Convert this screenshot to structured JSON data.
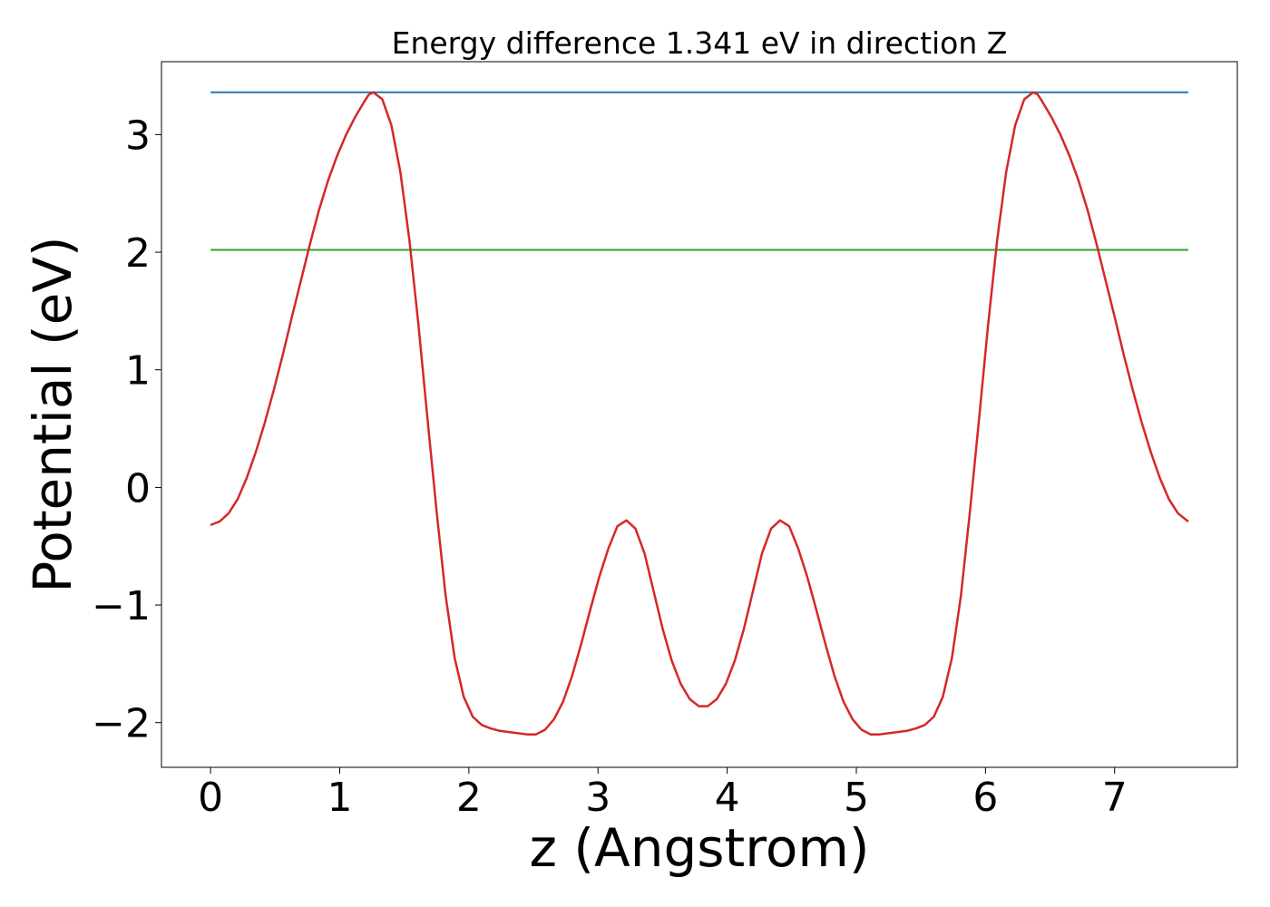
{
  "chart_data": {
    "type": "line",
    "title": "Energy difference 1.341 eV in direction Z",
    "xlabel": "z (Angstrom)",
    "ylabel": "Potential (eV)",
    "xlim": [
      -0.38,
      7.95
    ],
    "ylim": [
      -2.38,
      3.62
    ],
    "x_ticks": [
      0,
      1,
      2,
      3,
      4,
      5,
      6,
      7
    ],
    "x_tick_labels": [
      "0",
      "1",
      "2",
      "3",
      "4",
      "5",
      "6",
      "7"
    ],
    "y_ticks": [
      -2,
      -1,
      0,
      1,
      2,
      3
    ],
    "y_tick_labels": [
      "−2",
      "−1",
      "0",
      "1",
      "2",
      "3"
    ],
    "grid": false,
    "colors": {
      "potential": "#d62728",
      "upper_level": "#1f77b4",
      "lower_level": "#2ca02c"
    },
    "series": [
      {
        "values": [
          [
            0.0,
            -0.32
          ],
          [
            0.07,
            -0.29
          ],
          [
            0.14,
            -0.22
          ],
          [
            0.21,
            -0.1
          ],
          [
            0.28,
            0.08
          ],
          [
            0.35,
            0.3
          ],
          [
            0.42,
            0.55
          ],
          [
            0.49,
            0.83
          ],
          [
            0.56,
            1.13
          ],
          [
            0.63,
            1.45
          ],
          [
            0.7,
            1.76
          ],
          [
            0.77,
            2.07
          ],
          [
            0.84,
            2.36
          ],
          [
            0.91,
            2.61
          ],
          [
            0.98,
            2.82
          ],
          [
            1.05,
            3.0
          ],
          [
            1.12,
            3.15
          ],
          [
            1.19,
            3.28
          ],
          [
            1.225,
            3.34
          ],
          [
            1.26,
            3.36
          ],
          [
            1.33,
            3.3
          ],
          [
            1.4,
            3.08
          ],
          [
            1.47,
            2.68
          ],
          [
            1.54,
            2.1
          ],
          [
            1.61,
            1.38
          ],
          [
            1.68,
            0.58
          ],
          [
            1.75,
            -0.2
          ],
          [
            1.82,
            -0.92
          ],
          [
            1.89,
            -1.45
          ],
          [
            1.96,
            -1.78
          ],
          [
            2.03,
            -1.95
          ],
          [
            2.1,
            -2.02
          ],
          [
            2.17,
            -2.05
          ],
          [
            2.24,
            -2.07
          ],
          [
            2.31,
            -2.08
          ],
          [
            2.38,
            -2.09
          ],
          [
            2.45,
            -2.1
          ],
          [
            2.52,
            -2.1
          ],
          [
            2.59,
            -2.06
          ],
          [
            2.66,
            -1.97
          ],
          [
            2.73,
            -1.82
          ],
          [
            2.8,
            -1.6
          ],
          [
            2.87,
            -1.33
          ],
          [
            2.94,
            -1.04
          ],
          [
            3.01,
            -0.76
          ],
          [
            3.08,
            -0.52
          ],
          [
            3.15,
            -0.33
          ],
          [
            3.22,
            -0.28
          ],
          [
            3.29,
            -0.35
          ],
          [
            3.36,
            -0.56
          ],
          [
            3.43,
            -0.88
          ],
          [
            3.5,
            -1.2
          ],
          [
            3.57,
            -1.47
          ],
          [
            3.64,
            -1.67
          ],
          [
            3.71,
            -1.8
          ],
          [
            3.78,
            -1.86
          ],
          [
            3.85,
            -1.86
          ],
          [
            3.92,
            -1.8
          ],
          [
            3.99,
            -1.67
          ],
          [
            4.06,
            -1.47
          ],
          [
            4.13,
            -1.2
          ],
          [
            4.2,
            -0.88
          ],
          [
            4.27,
            -0.56
          ],
          [
            4.34,
            -0.35
          ],
          [
            4.41,
            -0.28
          ],
          [
            4.48,
            -0.33
          ],
          [
            4.55,
            -0.52
          ],
          [
            4.62,
            -0.76
          ],
          [
            4.69,
            -1.04
          ],
          [
            4.76,
            -1.33
          ],
          [
            4.83,
            -1.6
          ],
          [
            4.9,
            -1.82
          ],
          [
            4.97,
            -1.97
          ],
          [
            5.04,
            -2.06
          ],
          [
            5.11,
            -2.1
          ],
          [
            5.18,
            -2.1
          ],
          [
            5.25,
            -2.09
          ],
          [
            5.32,
            -2.08
          ],
          [
            5.39,
            -2.07
          ],
          [
            5.46,
            -2.05
          ],
          [
            5.53,
            -2.02
          ],
          [
            5.6,
            -1.95
          ],
          [
            5.67,
            -1.78
          ],
          [
            5.74,
            -1.45
          ],
          [
            5.81,
            -0.92
          ],
          [
            5.88,
            -0.2
          ],
          [
            5.95,
            0.58
          ],
          [
            6.02,
            1.38
          ],
          [
            6.09,
            2.1
          ],
          [
            6.16,
            2.68
          ],
          [
            6.23,
            3.08
          ],
          [
            6.3,
            3.3
          ],
          [
            6.37,
            3.36
          ],
          [
            6.405,
            3.34
          ],
          [
            6.44,
            3.28
          ],
          [
            6.51,
            3.15
          ],
          [
            6.58,
            3.0
          ],
          [
            6.65,
            2.82
          ],
          [
            6.72,
            2.61
          ],
          [
            6.79,
            2.36
          ],
          [
            6.86,
            2.07
          ],
          [
            6.93,
            1.76
          ],
          [
            7.0,
            1.45
          ],
          [
            7.07,
            1.13
          ],
          [
            7.14,
            0.83
          ],
          [
            7.21,
            0.55
          ],
          [
            7.28,
            0.3
          ],
          [
            7.35,
            0.08
          ],
          [
            7.42,
            -0.1
          ],
          [
            7.49,
            -0.22
          ],
          [
            7.57,
            -0.29
          ]
        ]
      },
      {
        "values": [
          [
            0.0,
            3.36
          ],
          [
            7.57,
            3.36
          ]
        ]
      },
      {
        "values": [
          [
            0.0,
            2.02
          ],
          [
            7.57,
            2.02
          ]
        ]
      }
    ]
  }
}
